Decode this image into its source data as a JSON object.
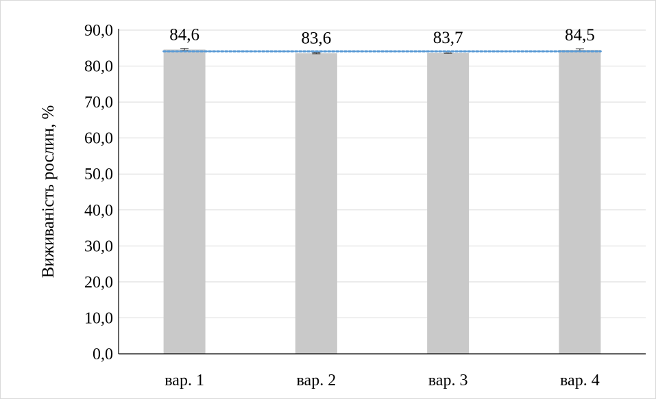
{
  "chart_data": {
    "type": "bar",
    "categories": [
      "вар. 1",
      "вар. 2",
      "вар. 3",
      "вар. 4"
    ],
    "values": [
      84.6,
      83.6,
      83.7,
      84.5
    ],
    "data_labels": [
      "84,6",
      "83,6",
      "83,7",
      "84,5"
    ],
    "error_bars": [
      0.3,
      0.2,
      0.2,
      0.3
    ],
    "reference_line": {
      "value": 84.1,
      "style": "dotted",
      "color": "#5b9bd5"
    },
    "ylabel": "Виживаність рослин, %",
    "xlabel": "",
    "ylim": [
      0,
      90
    ],
    "yticks": [
      0,
      10,
      20,
      30,
      40,
      50,
      60,
      70,
      80,
      90
    ],
    "ytick_labels": [
      "0,0",
      "10,0",
      "20,0",
      "30,0",
      "40,0",
      "50,0",
      "60,0",
      "70,0",
      "80,0",
      "90,0"
    ],
    "grid": true,
    "bar_color": "#c9c9c9",
    "grid_color": "#d9d9d9",
    "legend": false
  }
}
